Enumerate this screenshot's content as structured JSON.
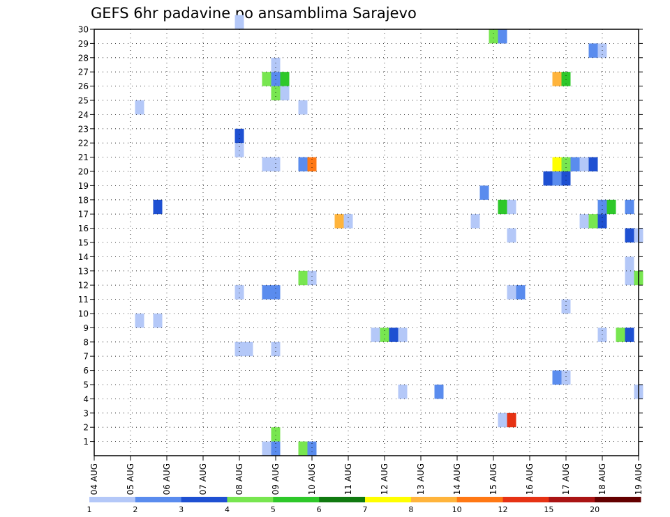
{
  "chart_data": {
    "type": "heatmap",
    "title": "GEFS 6hr padavine po ansamblima Sarajevo",
    "xlabel": "",
    "ylabel": "",
    "x_tick_labels": [
      "04 AUG",
      "05 AUG",
      "06 AUG",
      "07 AUG",
      "08 AUG",
      "09 AUG",
      "10 AUG",
      "11 AUG",
      "12 AUG",
      "13 AUG",
      "14 AUG",
      "15 AUG",
      "16 AUG",
      "17 AUG",
      "18 AUG",
      "19 AUG"
    ],
    "y_tick_labels": [
      "1",
      "2",
      "3",
      "4",
      "5",
      "6",
      "7",
      "8",
      "9",
      "10",
      "11",
      "12",
      "13",
      "14",
      "15",
      "16",
      "17",
      "18",
      "19",
      "20",
      "21",
      "22",
      "23",
      "24",
      "25",
      "26",
      "27",
      "28",
      "29",
      "30"
    ],
    "x_range_days": [
      0,
      15
    ],
    "y_range": [
      0,
      30
    ],
    "x_step_days": 0.25,
    "grid": true,
    "legend_position": "bottom",
    "legend_levels": [
      "1",
      "2",
      "3",
      "4",
      "5",
      "6",
      "7",
      "8",
      "10",
      "12",
      "15",
      "20"
    ],
    "legend_colors": [
      "#b4c8f8",
      "#5a8cee",
      "#1e50d2",
      "#78e650",
      "#2ec82a",
      "#107a10",
      "#ffff00",
      "#ffb43c",
      "#ff7814",
      "#e63214",
      "#aa1414",
      "#640000"
    ],
    "points": [
      [
        4.0,
        30,
        0
      ],
      [
        11.0,
        29,
        3
      ],
      [
        11.25,
        29,
        1
      ],
      [
        13.75,
        28,
        1
      ],
      [
        14.0,
        28,
        0
      ],
      [
        5.0,
        27,
        0
      ],
      [
        4.75,
        26,
        3
      ],
      [
        5.0,
        26,
        1
      ],
      [
        5.25,
        26,
        4
      ],
      [
        12.75,
        26,
        7
      ],
      [
        13.0,
        26,
        4
      ],
      [
        5.0,
        25,
        3
      ],
      [
        5.25,
        25,
        0
      ],
      [
        1.25,
        24,
        0
      ],
      [
        5.75,
        24,
        0
      ],
      [
        4.0,
        22,
        2
      ],
      [
        4.0,
        21,
        0
      ],
      [
        4.75,
        20,
        0
      ],
      [
        5.0,
        20,
        0
      ],
      [
        5.75,
        20,
        1
      ],
      [
        6.0,
        20,
        8
      ],
      [
        12.75,
        20,
        6
      ],
      [
        13.0,
        20,
        3
      ],
      [
        13.25,
        20,
        1
      ],
      [
        13.5,
        20,
        0
      ],
      [
        13.75,
        20,
        2
      ],
      [
        12.5,
        19,
        2
      ],
      [
        12.75,
        19,
        1
      ],
      [
        13.0,
        19,
        2
      ],
      [
        10.75,
        18,
        1
      ],
      [
        1.75,
        17,
        2
      ],
      [
        11.25,
        17,
        4
      ],
      [
        11.5,
        17,
        0
      ],
      [
        14.0,
        17,
        1
      ],
      [
        14.25,
        17,
        4
      ],
      [
        14.75,
        17,
        1
      ],
      [
        6.75,
        16,
        7
      ],
      [
        7.0,
        16,
        0
      ],
      [
        10.5,
        16,
        0
      ],
      [
        13.5,
        16,
        0
      ],
      [
        13.75,
        16,
        3
      ],
      [
        14.0,
        16,
        2
      ],
      [
        11.5,
        15,
        0
      ],
      [
        14.75,
        15,
        2
      ],
      [
        15.0,
        15,
        0
      ],
      [
        14.75,
        13,
        0
      ],
      [
        5.75,
        12,
        3
      ],
      [
        6.0,
        12,
        0
      ],
      [
        14.75,
        12,
        0
      ],
      [
        15.0,
        12,
        3
      ],
      [
        4.0,
        11,
        0
      ],
      [
        4.75,
        11,
        1
      ],
      [
        5.0,
        11,
        1
      ],
      [
        11.5,
        11,
        0
      ],
      [
        11.75,
        11,
        1
      ],
      [
        13.0,
        10,
        0
      ],
      [
        1.25,
        9,
        0
      ],
      [
        1.75,
        9,
        0
      ],
      [
        7.75,
        8,
        0
      ],
      [
        8.0,
        8,
        3
      ],
      [
        8.25,
        8,
        2
      ],
      [
        8.5,
        8,
        0
      ],
      [
        14.0,
        8,
        0
      ],
      [
        14.5,
        8,
        3
      ],
      [
        14.75,
        8,
        2
      ],
      [
        4.0,
        7,
        0
      ],
      [
        4.25,
        7,
        0
      ],
      [
        5.0,
        7,
        0
      ],
      [
        12.75,
        5,
        1
      ],
      [
        13.0,
        5,
        0
      ],
      [
        8.5,
        4,
        0
      ],
      [
        9.5,
        4,
        1
      ],
      [
        15.0,
        4,
        0
      ],
      [
        11.25,
        2,
        0
      ],
      [
        11.5,
        2,
        9
      ],
      [
        5.0,
        1,
        3
      ],
      [
        4.75,
        0,
        0
      ],
      [
        5.0,
        0,
        1
      ],
      [
        5.75,
        0,
        3
      ],
      [
        6.0,
        0,
        1
      ]
    ]
  }
}
